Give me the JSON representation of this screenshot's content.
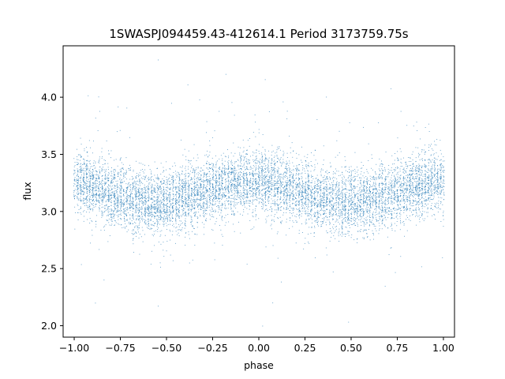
{
  "chart_data": {
    "type": "scatter",
    "title": "1SWASPJ094459.43-412614.1 Period 3173759.75s",
    "xlabel": "phase",
    "ylabel": "flux",
    "xlim": [
      -1.06,
      1.06
    ],
    "ylim": [
      1.9,
      4.45
    ],
    "xticks": [
      -1.0,
      -0.75,
      -0.5,
      -0.25,
      0.0,
      0.25,
      0.5,
      0.75,
      1.0
    ],
    "xtick_labels": [
      "−1.00",
      "−0.75",
      "−0.50",
      "−0.25",
      "0.00",
      "0.25",
      "0.50",
      "0.75",
      "1.00"
    ],
    "yticks": [
      2.0,
      2.5,
      3.0,
      3.5,
      4.0
    ],
    "ytick_labels": [
      "2.0",
      "2.5",
      "3.0",
      "3.5",
      "4.0"
    ],
    "grid": false,
    "marker_color": "#1f77b4",
    "series": [
      {
        "x_range": [
          -1.0,
          1.0
        ],
        "y_range": [
          2.0,
          4.35
        ],
        "mean_curve": {
          "x": [
            -1.0,
            -0.9,
            -0.75,
            -0.6,
            -0.45,
            -0.3,
            -0.15,
            0.0,
            0.15,
            0.3,
            0.45,
            0.6,
            0.75,
            0.9,
            1.0
          ],
          "y": [
            3.27,
            3.22,
            3.13,
            3.07,
            3.1,
            3.18,
            3.25,
            3.27,
            3.22,
            3.13,
            3.07,
            3.1,
            3.18,
            3.25,
            3.27
          ]
        }
      }
    ]
  }
}
